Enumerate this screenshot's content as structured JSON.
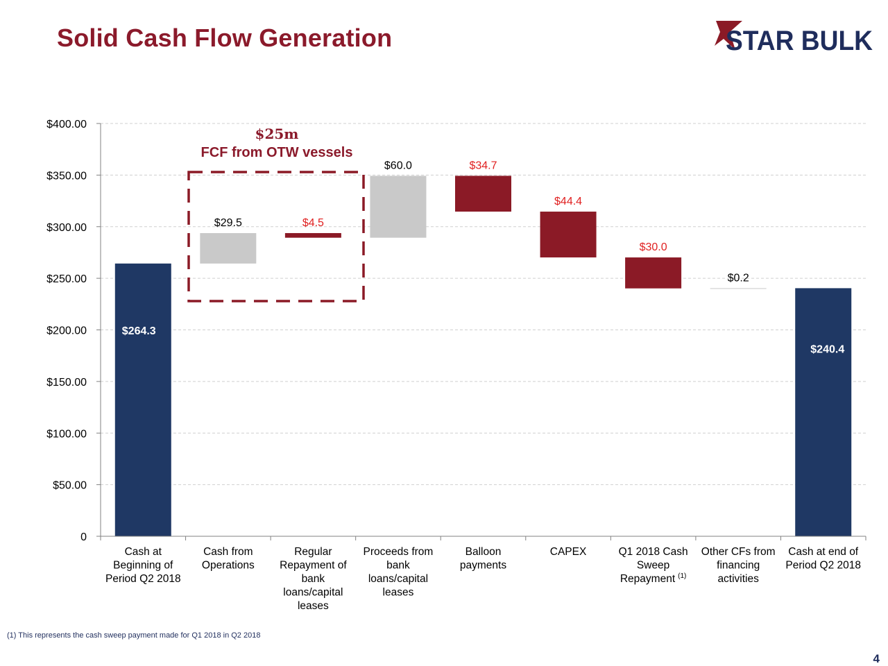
{
  "header": {
    "title": "Solid Cash Flow Generation",
    "logo_text": "STAR BULK"
  },
  "colors": {
    "navy": "#1f3864",
    "maroon": "#8b1a26",
    "gray": "#c9c9c9",
    "title": "#8b1a2b",
    "red_label": "#e02020"
  },
  "callout": {
    "line1": "$25m",
    "line2": "FCF from OTW vessels"
  },
  "chart_data": {
    "type": "bar",
    "subtype": "waterfall",
    "ylim": [
      0,
      400
    ],
    "yticks": [
      0,
      50,
      100,
      150,
      200,
      250,
      300,
      350,
      400
    ],
    "ytick_labels": [
      "0",
      "$50.00",
      "$100.00",
      "$150.00",
      "$200.00",
      "$250.00",
      "$300.00",
      "$350.00",
      "$400.00"
    ],
    "grid": true,
    "bars": [
      {
        "lines": [
          "Cash at",
          "Beginning of",
          "Period Q2 2018"
        ],
        "sup": "",
        "base": 0,
        "top": 264.3,
        "label": "$264.3",
        "kind": "total",
        "color": "navy"
      },
      {
        "lines": [
          "Cash from",
          "Operations"
        ],
        "sup": "",
        "base": 264.3,
        "top": 293.8,
        "label": "$29.5",
        "kind": "increase",
        "color": "gray"
      },
      {
        "lines": [
          "Regular",
          "Repayment of",
          "bank",
          "loans/capital",
          "leases"
        ],
        "sup": "",
        "base": 289.3,
        "top": 293.8,
        "label": "$4.5",
        "kind": "decrease",
        "color": "maroon"
      },
      {
        "lines": [
          "Proceeds from",
          "bank",
          "loans/capital",
          "leases"
        ],
        "sup": "",
        "base": 289.3,
        "top": 349.3,
        "label": "$60.0",
        "kind": "increase",
        "color": "gray"
      },
      {
        "lines": [
          "Balloon",
          "payments"
        ],
        "sup": "",
        "base": 314.6,
        "top": 349.3,
        "label": "$34.7",
        "kind": "decrease",
        "color": "maroon"
      },
      {
        "lines": [
          "CAPEX"
        ],
        "sup": "",
        "base": 270.2,
        "top": 314.6,
        "label": "$44.4",
        "kind": "decrease",
        "color": "maroon"
      },
      {
        "lines": [
          "Q1 2018 Cash",
          "Sweep",
          "Repayment"
        ],
        "sup": "(1)",
        "base": 240.2,
        "top": 270.2,
        "label": "$30.0",
        "kind": "decrease",
        "color": "maroon"
      },
      {
        "lines": [
          "Other CFs from",
          "financing",
          "activities"
        ],
        "sup": "",
        "base": 240.2,
        "top": 240.4,
        "label": "$0.2",
        "kind": "increase",
        "color": "gray"
      },
      {
        "lines": [
          "Cash at end of",
          "Period Q2 2018"
        ],
        "sup": "",
        "base": 0,
        "top": 240.4,
        "label": "$240.4",
        "kind": "total",
        "color": "navy"
      }
    ]
  },
  "footnote": "(1) This represents the cash sweep payment made for Q1 2018 in Q2 2018",
  "page_number": "4"
}
